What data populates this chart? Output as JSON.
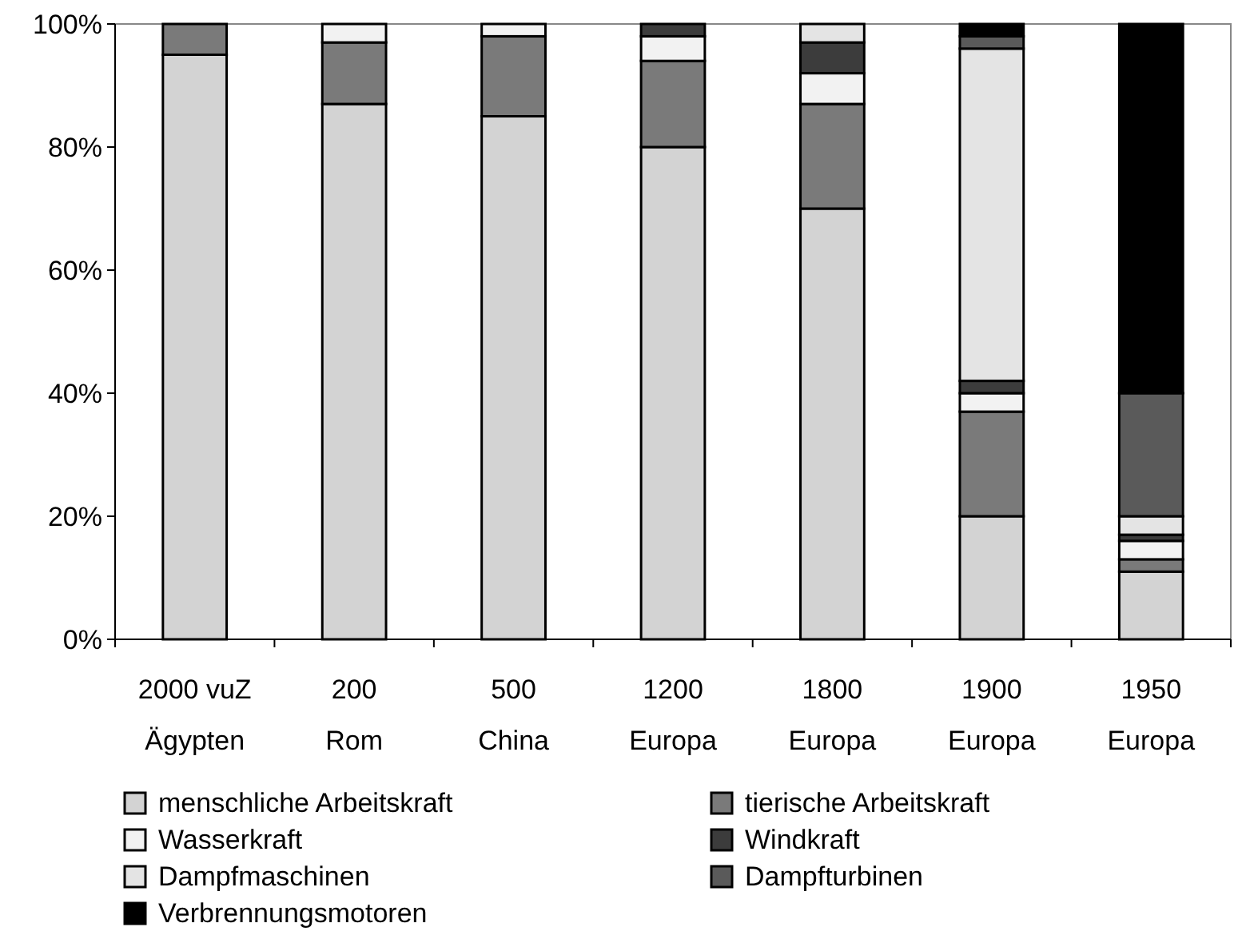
{
  "chart_data": {
    "type": "bar",
    "stacked": true,
    "categories": [
      "2000 vuZ Ägypten",
      "200 Rom",
      "500 China",
      "1200 Europa",
      "1800 Europa",
      "1900 Europa",
      "1950 Europa"
    ],
    "series": [
      {
        "name": "menschliche Arbeitskraft",
        "color": "#d3d3d3",
        "values": [
          95,
          87,
          85,
          80,
          70,
          20,
          11
        ]
      },
      {
        "name": "tierische Arbeitskraft",
        "color": "#7a7a7a",
        "values": [
          5,
          10,
          13,
          14,
          17,
          17,
          2
        ]
      },
      {
        "name": "Wasserkraft",
        "color": "#f2f2f2",
        "values": [
          0,
          3,
          2,
          4,
          5,
          3,
          3
        ]
      },
      {
        "name": "Windkraft",
        "color": "#3c3c3c",
        "values": [
          0,
          0,
          0,
          2,
          5,
          2,
          1
        ]
      },
      {
        "name": "Dampfmaschinen",
        "color": "#e4e4e4",
        "values": [
          0,
          0,
          0,
          0,
          3,
          54,
          3
        ]
      },
      {
        "name": "Dampfturbinen",
        "color": "#5a5a5a",
        "values": [
          0,
          0,
          0,
          0,
          0,
          2,
          20
        ]
      },
      {
        "name": "Verbrennungsmotoren",
        "color": "#000000",
        "values": [
          0,
          0,
          0,
          0,
          0,
          2,
          60
        ]
      }
    ],
    "ylim": [
      0,
      100
    ],
    "yticks": [
      {
        "value": 0,
        "label": "0%"
      },
      {
        "value": 20,
        "label": "20%"
      },
      {
        "value": 40,
        "label": "40%"
      },
      {
        "value": 60,
        "label": "60%"
      },
      {
        "value": 80,
        "label": "80%"
      },
      {
        "value": 100,
        "label": "100%"
      }
    ],
    "grid": false,
    "legend": "bottom"
  }
}
